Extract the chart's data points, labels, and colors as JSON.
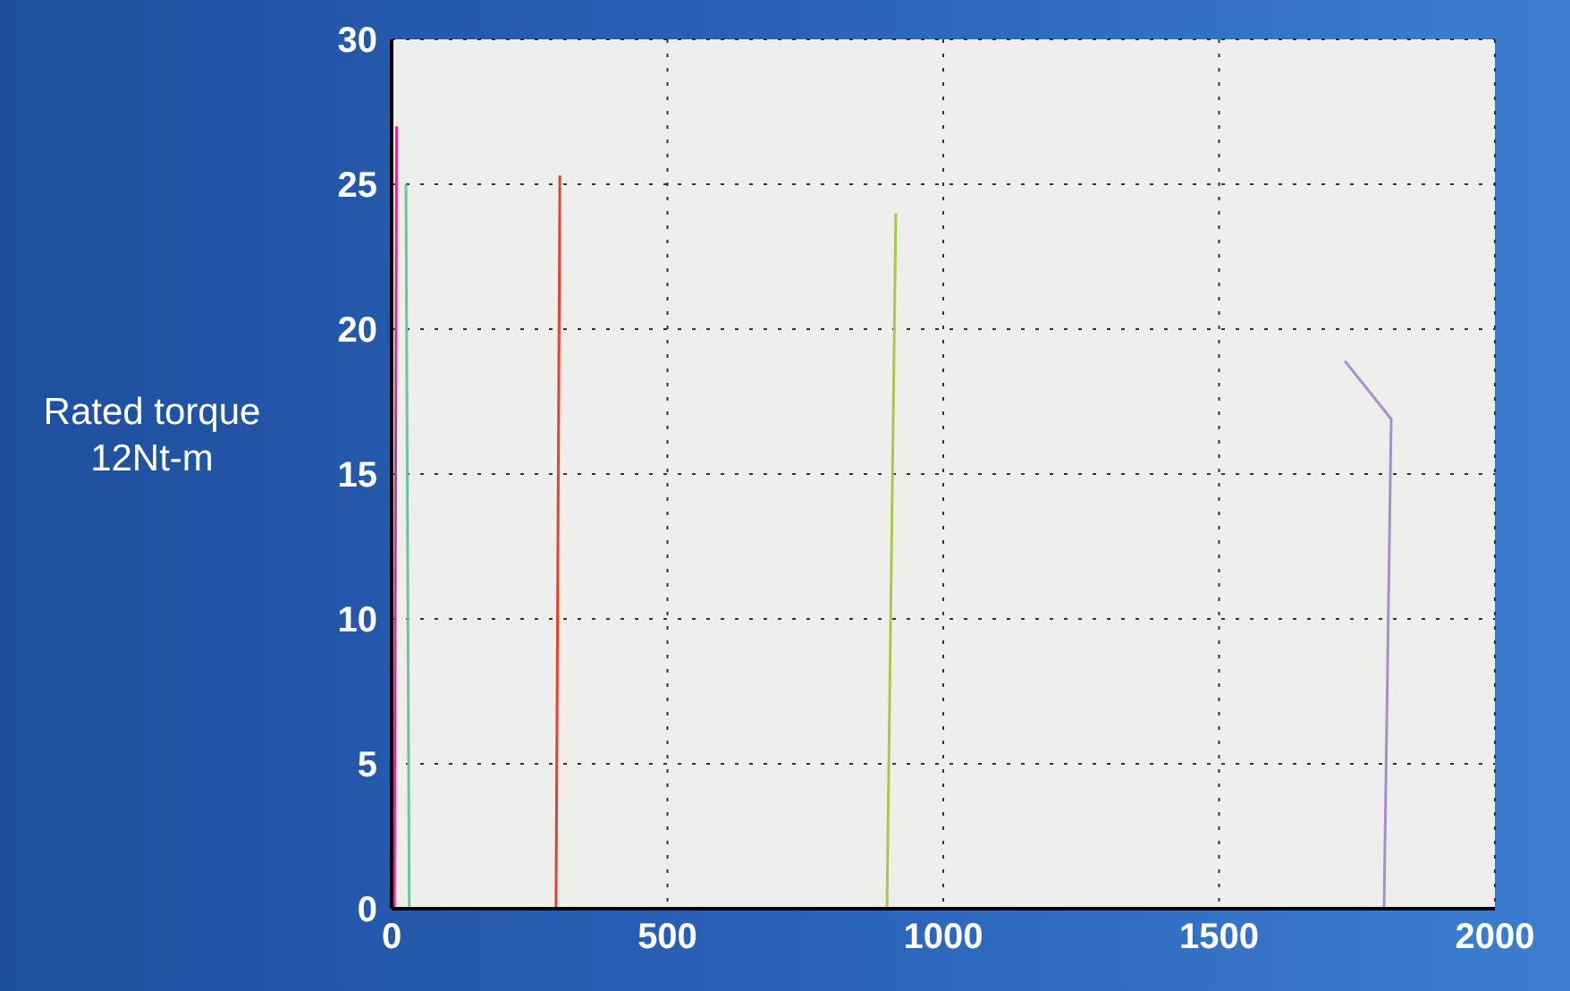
{
  "chart_data": {
    "type": "line",
    "ylabel": "Rated torque\n12Nt-m",
    "xlim": [
      0,
      2000
    ],
    "xticks": [
      0,
      500,
      1000,
      1500,
      2000
    ],
    "ylim": [
      0,
      30
    ],
    "yticks": [
      0,
      5,
      10,
      15,
      20,
      25,
      30
    ],
    "grid": true,
    "marker": "none",
    "line_style": "solid",
    "series": [
      {
        "color": "#d62f8a",
        "x": [
          5,
          9
        ],
        "values": [
          0,
          27
        ]
      },
      {
        "color": "#6fc3a0",
        "x": [
          32,
          26
        ],
        "values": [
          0,
          25
        ]
      },
      {
        "color": "#e8402a",
        "x": [
          298,
          305
        ],
        "values": [
          0,
          25.3
        ]
      },
      {
        "color": "#a8c84a",
        "x": [
          898,
          914
        ],
        "values": [
          0,
          24
        ]
      },
      {
        "color": "#a58fd0",
        "x": [
          1799,
          1812,
          1728
        ],
        "values": [
          0,
          16.9,
          18.9
        ]
      }
    ]
  }
}
